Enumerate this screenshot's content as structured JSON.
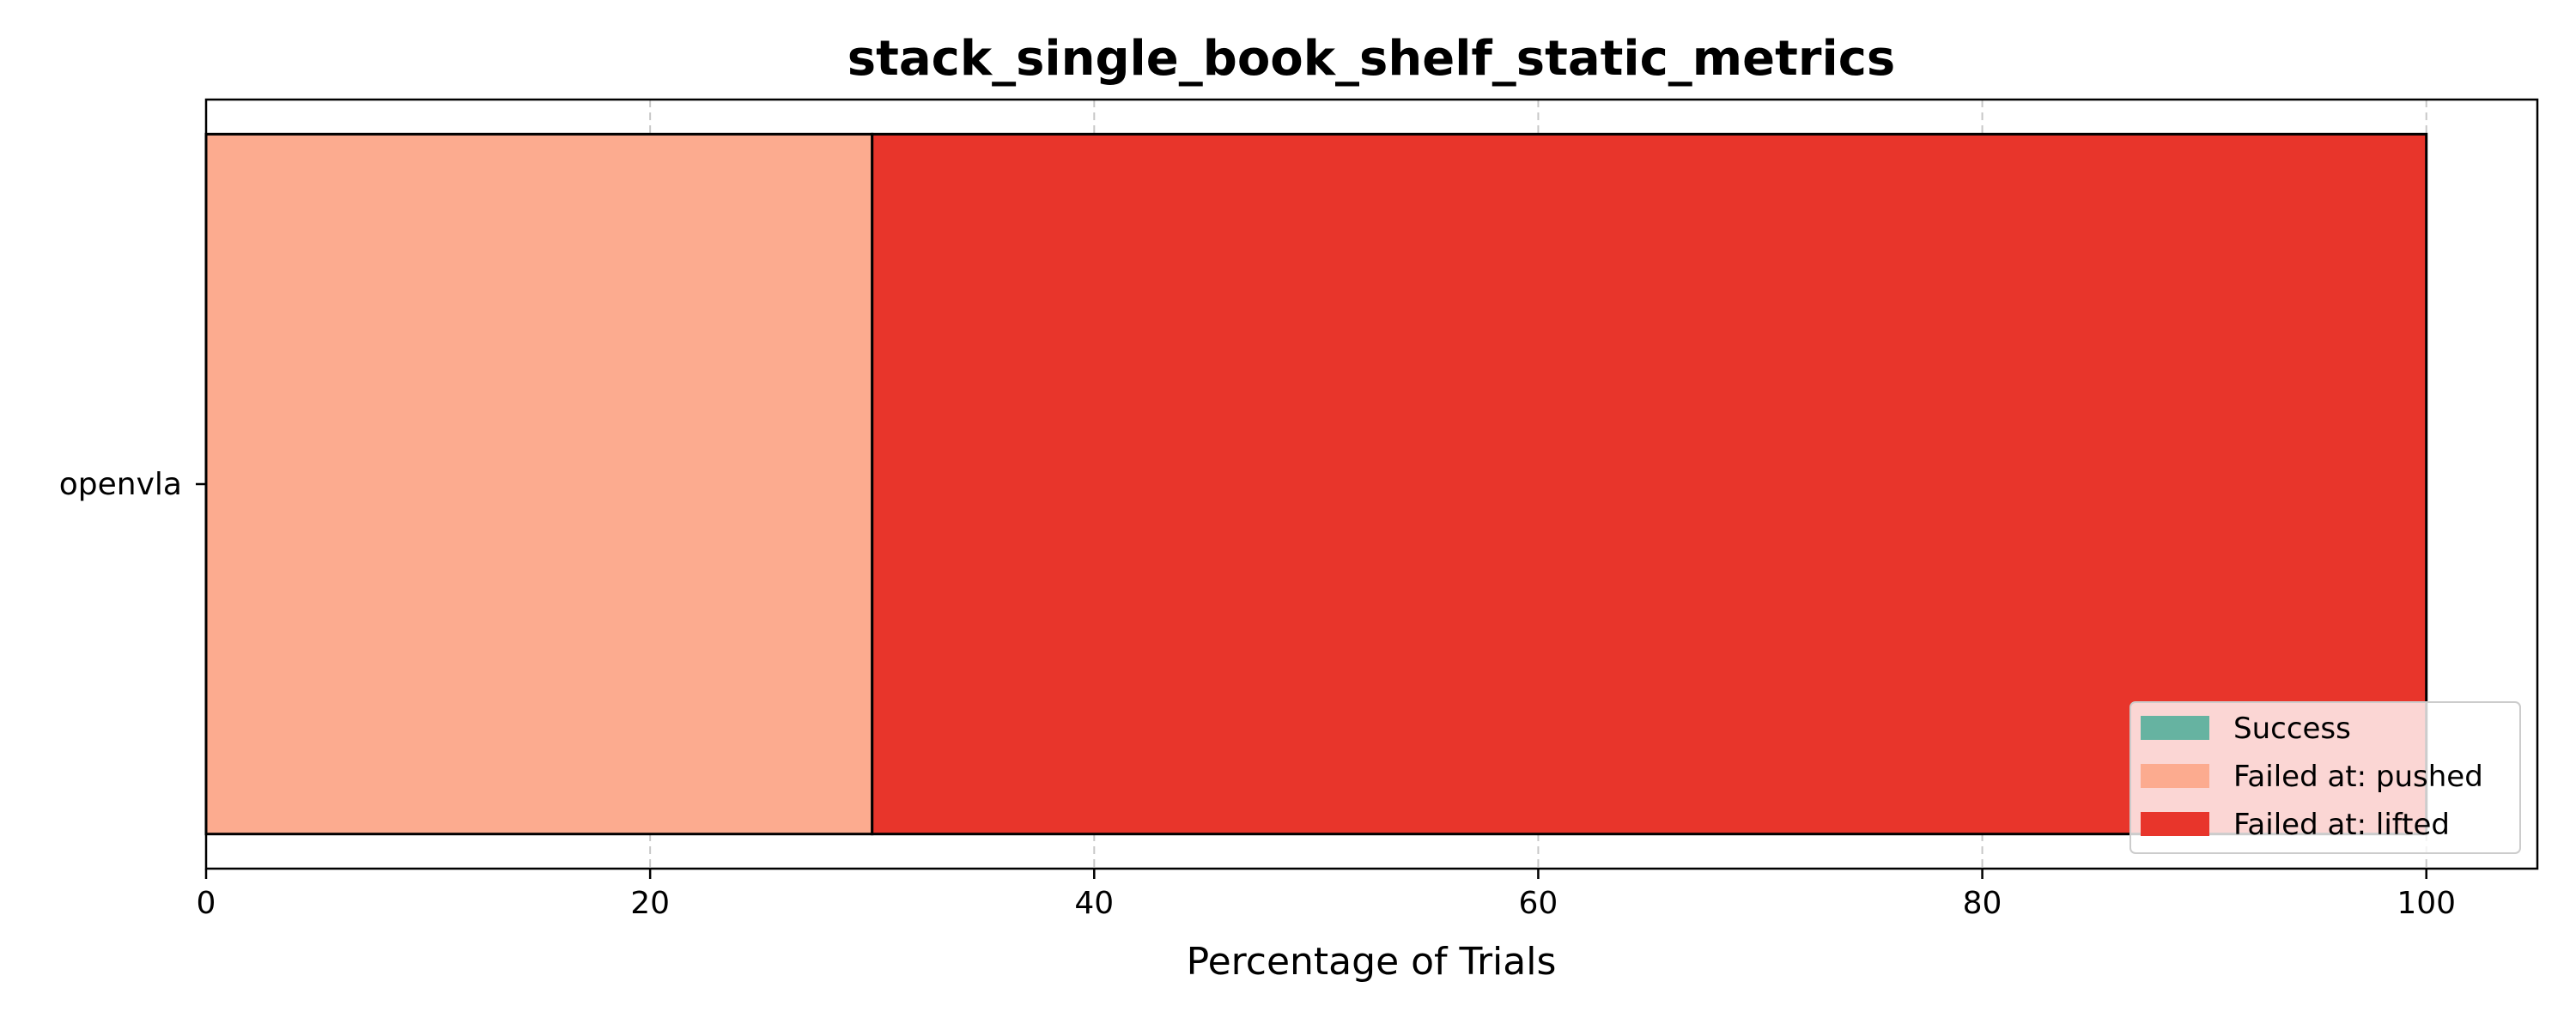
{
  "chart_data": {
    "type": "bar",
    "orientation": "horizontal",
    "stacked": true,
    "title": "stack_single_book_shelf_static_metrics",
    "xlabel": "Percentage of Trials",
    "ylabel": "",
    "categories": [
      "openvla"
    ],
    "series": [
      {
        "name": "Success",
        "values": [
          0
        ],
        "color": "#66b3a1"
      },
      {
        "name": "Failed at: pushed",
        "values": [
          30
        ],
        "color": "#fcab8f"
      },
      {
        "name": "Failed at: lifted",
        "values": [
          70
        ],
        "color": "#e8352b"
      }
    ],
    "xlim": [
      0,
      105
    ],
    "xticks": [
      0,
      20,
      40,
      60,
      80,
      100
    ],
    "grid": "x-dashed",
    "legend_position": "lower-right"
  }
}
